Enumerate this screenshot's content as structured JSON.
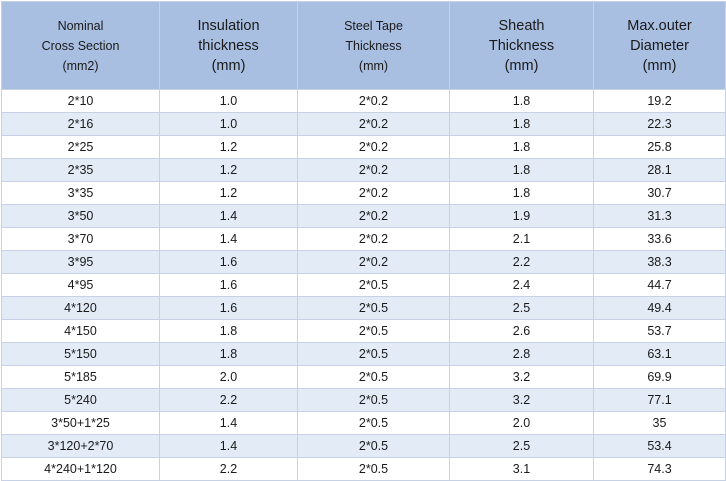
{
  "table": {
    "headers": [
      {
        "lines": [
          "Nominal",
          "Cross Section",
          "(mm2)"
        ],
        "size": "small"
      },
      {
        "lines": [
          "Insulation",
          "thickness",
          "(mm)"
        ],
        "size": "large"
      },
      {
        "lines": [
          "Steel Tape",
          "Thickness",
          "(mm)"
        ],
        "size": "small"
      },
      {
        "lines": [
          "Sheath",
          "Thickness",
          "(mm)"
        ],
        "size": "large"
      },
      {
        "lines": [
          "Max.outer",
          "Diameter",
          "(mm)"
        ],
        "size": "large"
      }
    ],
    "rows": [
      [
        "2*10",
        "1.0",
        "2*0.2",
        "1.8",
        "19.2"
      ],
      [
        "2*16",
        "1.0",
        "2*0.2",
        "1.8",
        "22.3"
      ],
      [
        "2*25",
        "1.2",
        "2*0.2",
        "1.8",
        "25.8"
      ],
      [
        "2*35",
        "1.2",
        "2*0.2",
        "1.8",
        "28.1"
      ],
      [
        "3*35",
        "1.2",
        "2*0.2",
        "1.8",
        "30.7"
      ],
      [
        "3*50",
        "1.4",
        "2*0.2",
        "1.9",
        "31.3"
      ],
      [
        "3*70",
        "1.4",
        "2*0.2",
        "2.1",
        "33.6"
      ],
      [
        "3*95",
        "1.6",
        "2*0.2",
        "2.2",
        "38.3"
      ],
      [
        "4*95",
        "1.6",
        "2*0.5",
        "2.4",
        "44.7"
      ],
      [
        "4*120",
        "1.6",
        "2*0.5",
        "2.5",
        "49.4"
      ],
      [
        "4*150",
        "1.8",
        "2*0.5",
        "2.6",
        "53.7"
      ],
      [
        "5*150",
        "1.8",
        "2*0.5",
        "2.8",
        "63.1"
      ],
      [
        "5*185",
        "2.0",
        "2*0.5",
        "3.2",
        "69.9"
      ],
      [
        "5*240",
        "2.2",
        "2*0.5",
        "3.2",
        "77.1"
      ],
      [
        "3*50+1*25",
        "1.4",
        "2*0.5",
        "2.0",
        "35"
      ],
      [
        "3*120+2*70",
        "1.4",
        "2*0.5",
        "2.5",
        "53.4"
      ],
      [
        "4*240+1*120",
        "2.2",
        "2*0.5",
        "3.1",
        "74.3"
      ]
    ]
  },
  "colors": {
    "header_bg": "#a9bfe2",
    "row_alt_bg": "#e3ebf7",
    "border": "#c6d2e4"
  }
}
